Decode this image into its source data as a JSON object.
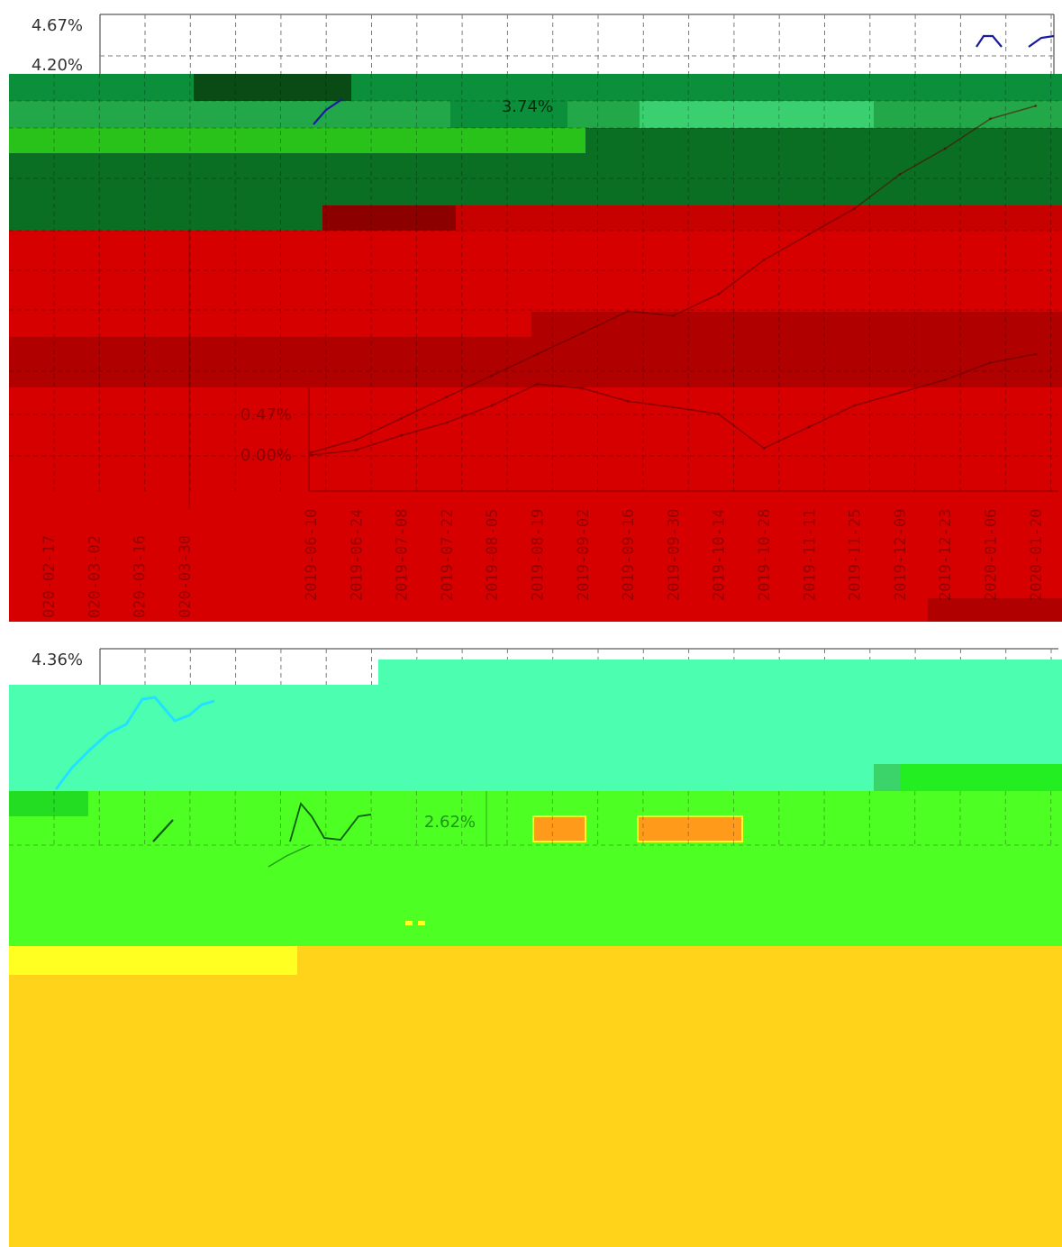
{
  "colors": {
    "background": "#ffffff",
    "green_band": "#0b8f3a",
    "green_bright": "#22b84a",
    "green_dark": "#0a6f22",
    "green_lime": "#29c21a",
    "red_band": "#d60000",
    "red_dark": "#b10000",
    "maroon": "#8c0000",
    "cyan_band": "#4cffb0",
    "lime_band": "#4dff22",
    "yellow_band": "#ffd31a",
    "yellow_bright": "#ffff22",
    "orange_block": "#ff9a1a",
    "line_blue": "#1a1aa0",
    "line_cyan": "#22e0ff",
    "line_dark": "#5a0000",
    "line_green": "#0a5a10"
  },
  "chart_data": [
    {
      "type": "line",
      "y_tick_labels": [
        "4.67%",
        "4.20%",
        "3.74%",
        "0.47%",
        "0.00%"
      ],
      "x_tick_labels_main": [
        "2019-06-10",
        "2019-06-24",
        "2019-07-08",
        "2019-07-22",
        "2019-08-05",
        "2019-08-19",
        "2019-09-02",
        "2019-09-16",
        "2019-09-30",
        "2019-10-14",
        "2019-10-28",
        "2019-11-11",
        "2019-11-25",
        "2019-12-09",
        "2019-12-23",
        "2020-01-06",
        "2020-01-20"
      ],
      "x_tick_labels_left": [
        "020-02-17",
        "020-03-02",
        "020-03-16",
        "020-03-30"
      ],
      "series": [
        {
          "x": [
            "2019-06-10",
            "2019-06-24",
            "2019-07-08",
            "2019-07-22",
            "2019-08-05",
            "2019-08-19",
            "2019-09-02",
            "2019-09-16",
            "2019-09-30",
            "2019-10-14",
            "2019-10-28",
            "2019-11-11",
            "2019-11-25",
            "2019-12-09",
            "2019-12-23",
            "2020-01-06",
            "2020-01-20"
          ],
          "values": [
            0.05,
            0.2,
            0.45,
            0.7,
            0.95,
            1.2,
            1.45,
            1.7,
            1.65,
            1.9,
            2.3,
            2.6,
            2.9,
            3.3,
            3.6,
            3.95,
            4.1
          ]
        },
        {
          "x": [
            "2019-06-10",
            "2019-06-24",
            "2019-07-08",
            "2019-07-22",
            "2019-08-05",
            "2019-08-19",
            "2019-09-02",
            "2019-09-16",
            "2019-09-30",
            "2019-10-14",
            "2019-10-28",
            "2019-11-11",
            "2019-11-25",
            "2019-12-09",
            "2019-12-23",
            "2020-01-06",
            "2020-01-20"
          ],
          "values": [
            0.02,
            0.08,
            0.25,
            0.4,
            0.6,
            0.85,
            0.8,
            0.65,
            0.58,
            0.5,
            0.1,
            0.35,
            0.6,
            0.75,
            0.9,
            1.1,
            1.2
          ]
        }
      ]
    },
    {
      "type": "line",
      "y_tick_labels": [
        "4.36%",
        "2.62%"
      ]
    }
  ]
}
